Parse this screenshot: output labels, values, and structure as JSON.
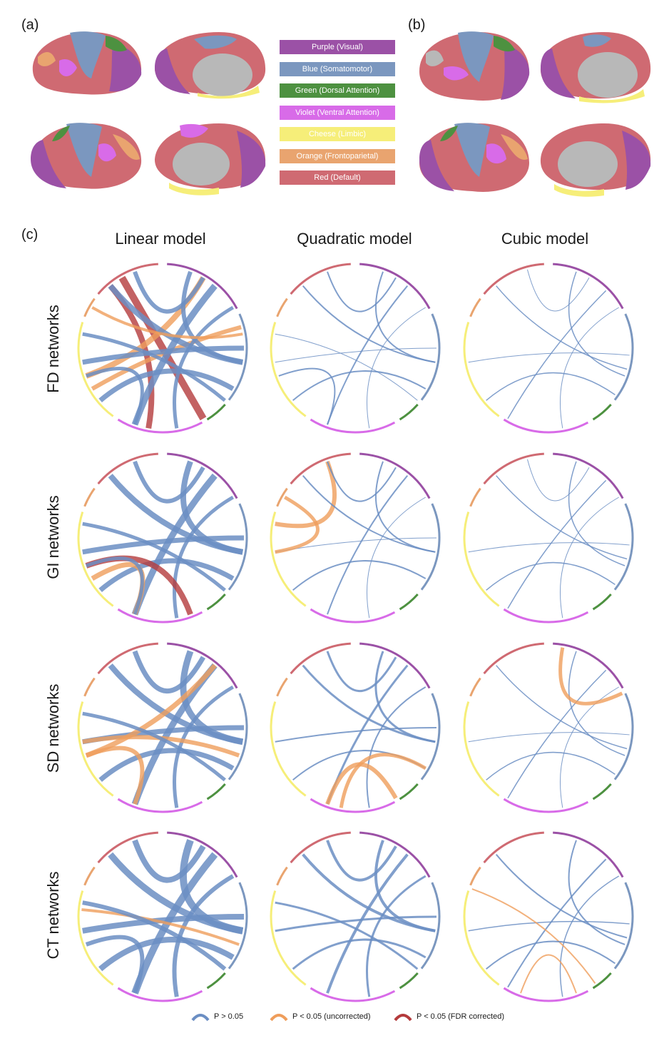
{
  "panels": {
    "a": "(a)",
    "b": "(b)",
    "c": "(c)"
  },
  "networks": [
    {
      "label": "Purple (Visual)",
      "color": "#9b51a6"
    },
    {
      "label": "Blue (Somatomotor)",
      "color": "#7b97bf"
    },
    {
      "label": "Green (Dorsal Attention)",
      "color": "#4d9140"
    },
    {
      "label": "Violet (Ventral Attention)",
      "color": "#d86be8"
    },
    {
      "label": "Cheese (Limbic)",
      "color": "#f6ee79"
    },
    {
      "label": "Orange (Frontoparietal)",
      "color": "#e9a46f"
    },
    {
      "label": "Red (Default)",
      "color": "#cf6a72"
    }
  ],
  "columns": [
    "Linear model",
    "Quadratic model",
    "Cubic model"
  ],
  "rows": [
    "FD networks",
    "GI networks",
    "SD networks",
    "CT networks"
  ],
  "footer": [
    {
      "label": "P > 0.05",
      "color": "#6b8ec3"
    },
    {
      "label": "P < 0.05 (uncorrected)",
      "color": "#ef9d5b"
    },
    {
      "label": "P < 0.05 (FDR corrected)",
      "color": "#b43b3c"
    }
  ]
}
